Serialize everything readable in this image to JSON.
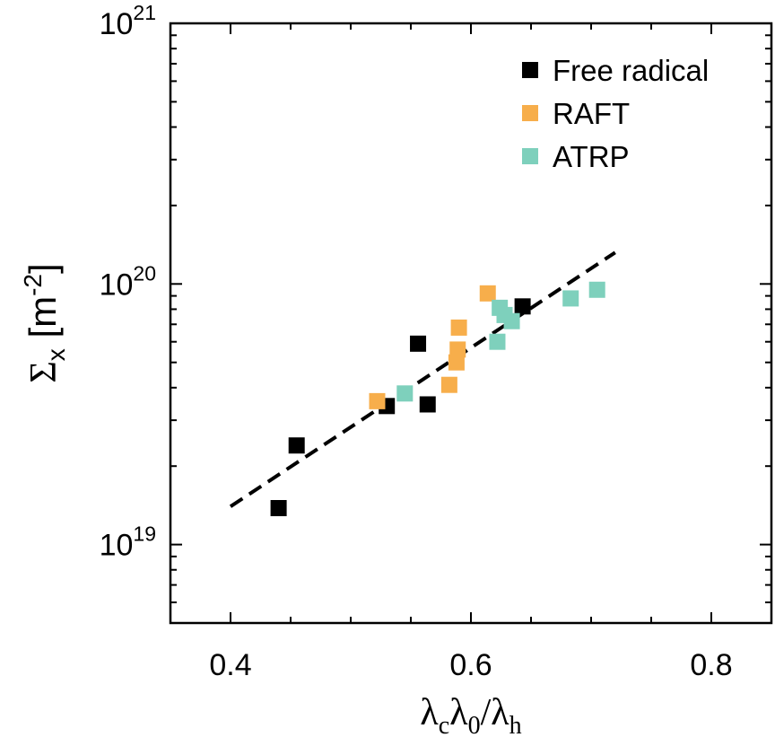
{
  "chart_data": {
    "type": "scatter",
    "xlabel": {
      "main": "λ",
      "sub1": "c",
      "mid": "λ",
      "sub2": "0",
      "div": "/λ",
      "sub3": "h"
    },
    "ylabel": {
      "main": "Σ",
      "sub": "x",
      "unit": " [m",
      "unitexp": "-2",
      "close": "]"
    },
    "xlim": [
      0.35,
      0.85
    ],
    "ylim": [
      5e+18,
      1e+21
    ],
    "yscale": "log",
    "grid": false,
    "legend_position": "top-right",
    "x_ticks": [
      {
        "value": 0.4,
        "label": "0.4"
      },
      {
        "value": 0.6,
        "label": "0.6"
      },
      {
        "value": 0.8,
        "label": "0.8"
      }
    ],
    "y_ticks": [
      {
        "value": 1e+19,
        "base": "10",
        "exp": "19"
      },
      {
        "value": 1e+20,
        "base": "10",
        "exp": "20"
      },
      {
        "value": 1e+21,
        "base": "10",
        "exp": "21"
      }
    ],
    "series": [
      {
        "name": "Free radical",
        "color": "#000000",
        "points": [
          {
            "x": 0.44,
            "y": 1.38e+19
          },
          {
            "x": 0.455,
            "y": 2.4e+19
          },
          {
            "x": 0.53,
            "y": 3.4e+19
          },
          {
            "x": 0.556,
            "y": 5.9e+19
          },
          {
            "x": 0.564,
            "y": 3.45e+19
          },
          {
            "x": 0.643,
            "y": 8.2e+19
          }
        ]
      },
      {
        "name": "RAFT",
        "color": "#F7AE4B",
        "points": [
          {
            "x": 0.522,
            "y": 3.55e+19
          },
          {
            "x": 0.582,
            "y": 4.1e+19
          },
          {
            "x": 0.588,
            "y": 5e+19
          },
          {
            "x": 0.589,
            "y": 5.6e+19
          },
          {
            "x": 0.59,
            "y": 6.8e+19
          },
          {
            "x": 0.614,
            "y": 9.2e+19
          }
        ]
      },
      {
        "name": "ATRP",
        "color": "#7ED0BC",
        "points": [
          {
            "x": 0.545,
            "y": 3.8e+19
          },
          {
            "x": 0.622,
            "y": 6e+19
          },
          {
            "x": 0.624,
            "y": 8.1e+19
          },
          {
            "x": 0.628,
            "y": 7.6e+19
          },
          {
            "x": 0.634,
            "y": 7.2e+19
          },
          {
            "x": 0.683,
            "y": 8.8e+19
          },
          {
            "x": 0.705,
            "y": 9.5e+19
          }
        ]
      }
    ],
    "fit_line": {
      "style": "dashed",
      "color": "#000000",
      "x": [
        0.4,
        0.72
      ],
      "y": [
        1.4e+19,
        1.32e+20
      ]
    }
  }
}
